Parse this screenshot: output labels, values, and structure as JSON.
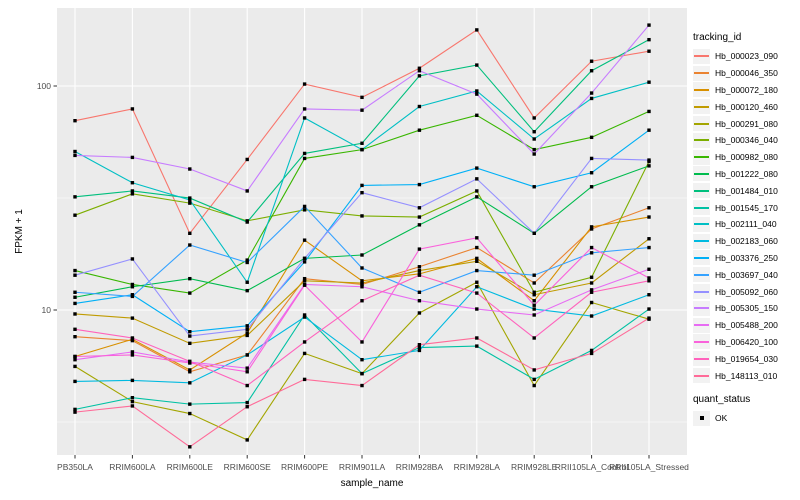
{
  "figure": {
    "xlabel": "sample_name",
    "ylabel": "FPKM + 1",
    "legend_title": "tracking_id",
    "legend2_title": "quant_status",
    "legend2_items": [
      {
        "label": "OK",
        "marker": "black-square"
      }
    ],
    "panel_bg": "#EBEBEB",
    "grid_color": "#FFFFFF",
    "tick_label_color": "#4D4D4D",
    "point_color": "#000000"
  },
  "chart_data": {
    "type": "line",
    "title": "",
    "xlabel": "sample_name",
    "ylabel": "FPKM + 1",
    "yscale": "log10",
    "ylim": [
      2.25,
      223
    ],
    "yticks": [
      {
        "label": "10",
        "value": 10
      },
      {
        "label": "100",
        "value": 100
      }
    ],
    "yticks_minor": [
      3.162,
      31.62
    ],
    "grid": true,
    "legend_position": "right",
    "point_shape": "filled-square",
    "categories": [
      "PB350LA",
      "RRIM600LA",
      "RRIM600LE",
      "RRIM600SE",
      "RRIM600PE",
      "RRIM901LA",
      "RRIM928BA",
      "RRIM928LA",
      "RRIM928LE",
      "RRII105LA_Control",
      "RRII105LA_Stressed"
    ],
    "series": [
      {
        "name": "Hb_000023_090",
        "color": "#F8766D",
        "values": [
          70,
          79,
          22,
          47,
          102,
          89,
          120,
          178,
          72,
          129,
          143
        ]
      },
      {
        "name": "Hb_000046_350",
        "color": "#EA8331",
        "values": [
          7.6,
          7.3,
          5.3,
          6.3,
          13.8,
          13,
          15.6,
          19,
          13.2,
          23,
          28.6
        ]
      },
      {
        "name": "Hb_000072_180",
        "color": "#D89000",
        "values": [
          6.2,
          7.4,
          5.4,
          7.9,
          20.5,
          13.5,
          14.5,
          17,
          11,
          23.5,
          26
        ]
      },
      {
        "name": "Hb_000120_460",
        "color": "#C09B00",
        "values": [
          9.6,
          9.2,
          7.1,
          7.7,
          13.5,
          13.2,
          15,
          16.5,
          11.7,
          13.2,
          20.8
        ]
      },
      {
        "name": "Hb_000291_080",
        "color": "#A3A500",
        "values": [
          5.6,
          3.9,
          3.45,
          2.63,
          6.4,
          5.2,
          9.7,
          13.3,
          4.6,
          10.8,
          9.1
        ]
      },
      {
        "name": "Hb_000346_040",
        "color": "#7CAE00",
        "values": [
          26.5,
          33,
          30,
          25,
          28,
          26.3,
          26,
          34,
          12,
          14,
          46
        ]
      },
      {
        "name": "Hb_000982_080",
        "color": "#39B600",
        "values": [
          15,
          13,
          11.9,
          16.7,
          47.5,
          52,
          63.5,
          74,
          52,
          59,
          77
        ]
      },
      {
        "name": "Hb_001222_080",
        "color": "#00BB4E",
        "values": [
          11.4,
          12.7,
          13.8,
          12.2,
          17,
          17.6,
          24,
          32,
          22,
          35.5,
          44
        ]
      },
      {
        "name": "Hb_001484_010",
        "color": "#00BF7D",
        "values": [
          32,
          34,
          31.6,
          24.7,
          50,
          55.5,
          111,
          124,
          62.5,
          117,
          161
        ]
      },
      {
        "name": "Hb_001545_170",
        "color": "#00C1A3",
        "values": [
          3.6,
          4.06,
          3.8,
          3.86,
          9.5,
          5.2,
          6.8,
          6.9,
          4.9,
          6.6,
          10.1
        ]
      },
      {
        "name": "Hb_002111_040",
        "color": "#00BFC4",
        "values": [
          51,
          37,
          31,
          13.3,
          72,
          52,
          81,
          95,
          58,
          88,
          104
        ]
      },
      {
        "name": "Hb_002183_060",
        "color": "#00BAE0",
        "values": [
          4.8,
          4.85,
          4.73,
          6.3,
          9.3,
          6,
          6.6,
          12.7,
          10.1,
          9.4,
          11.7
        ]
      },
      {
        "name": "Hb_003376_250",
        "color": "#00B0F6",
        "values": [
          10.7,
          11.7,
          8,
          8.5,
          16.4,
          36,
          36.3,
          43,
          35.5,
          41,
          63.5
        ]
      },
      {
        "name": "Hb_003697_040",
        "color": "#35A2FF",
        "values": [
          12,
          11.5,
          19.5,
          16.3,
          29,
          15.4,
          12,
          15,
          14.3,
          18,
          19
        ]
      },
      {
        "name": "Hb_005092_060",
        "color": "#9590FF",
        "values": [
          14.3,
          16.9,
          7.65,
          8.2,
          17,
          33.4,
          28.6,
          38.5,
          22,
          47.5,
          46.7
        ]
      },
      {
        "name": "Hb_005305_150",
        "color": "#C77CFF",
        "values": [
          49,
          48,
          42.6,
          34,
          79,
          78,
          117,
          92,
          49.7,
          93,
          187
        ]
      },
      {
        "name": "Hb_005488_200",
        "color": "#E76BF3",
        "values": [
          6,
          6.5,
          5.86,
          5.5,
          13,
          12.7,
          11,
          10.1,
          9.5,
          12.3,
          15.2
        ]
      },
      {
        "name": "Hb_006420_100",
        "color": "#FA62DB",
        "values": [
          6.2,
          6.3,
          5.8,
          5.3,
          12.9,
          7.2,
          18.7,
          21,
          10.5,
          19,
          13.9
        ]
      },
      {
        "name": "Hb_019654_030",
        "color": "#FF62BC",
        "values": [
          8.2,
          7.5,
          5.9,
          4.6,
          7.2,
          11,
          14.3,
          11.9,
          7.5,
          12,
          13.5
        ]
      },
      {
        "name": "Hb_148113_010",
        "color": "#FF6A98",
        "values": [
          3.5,
          3.73,
          2.45,
          3.7,
          4.9,
          4.6,
          7,
          7.5,
          5.4,
          6.4,
          9.2
        ]
      }
    ]
  }
}
